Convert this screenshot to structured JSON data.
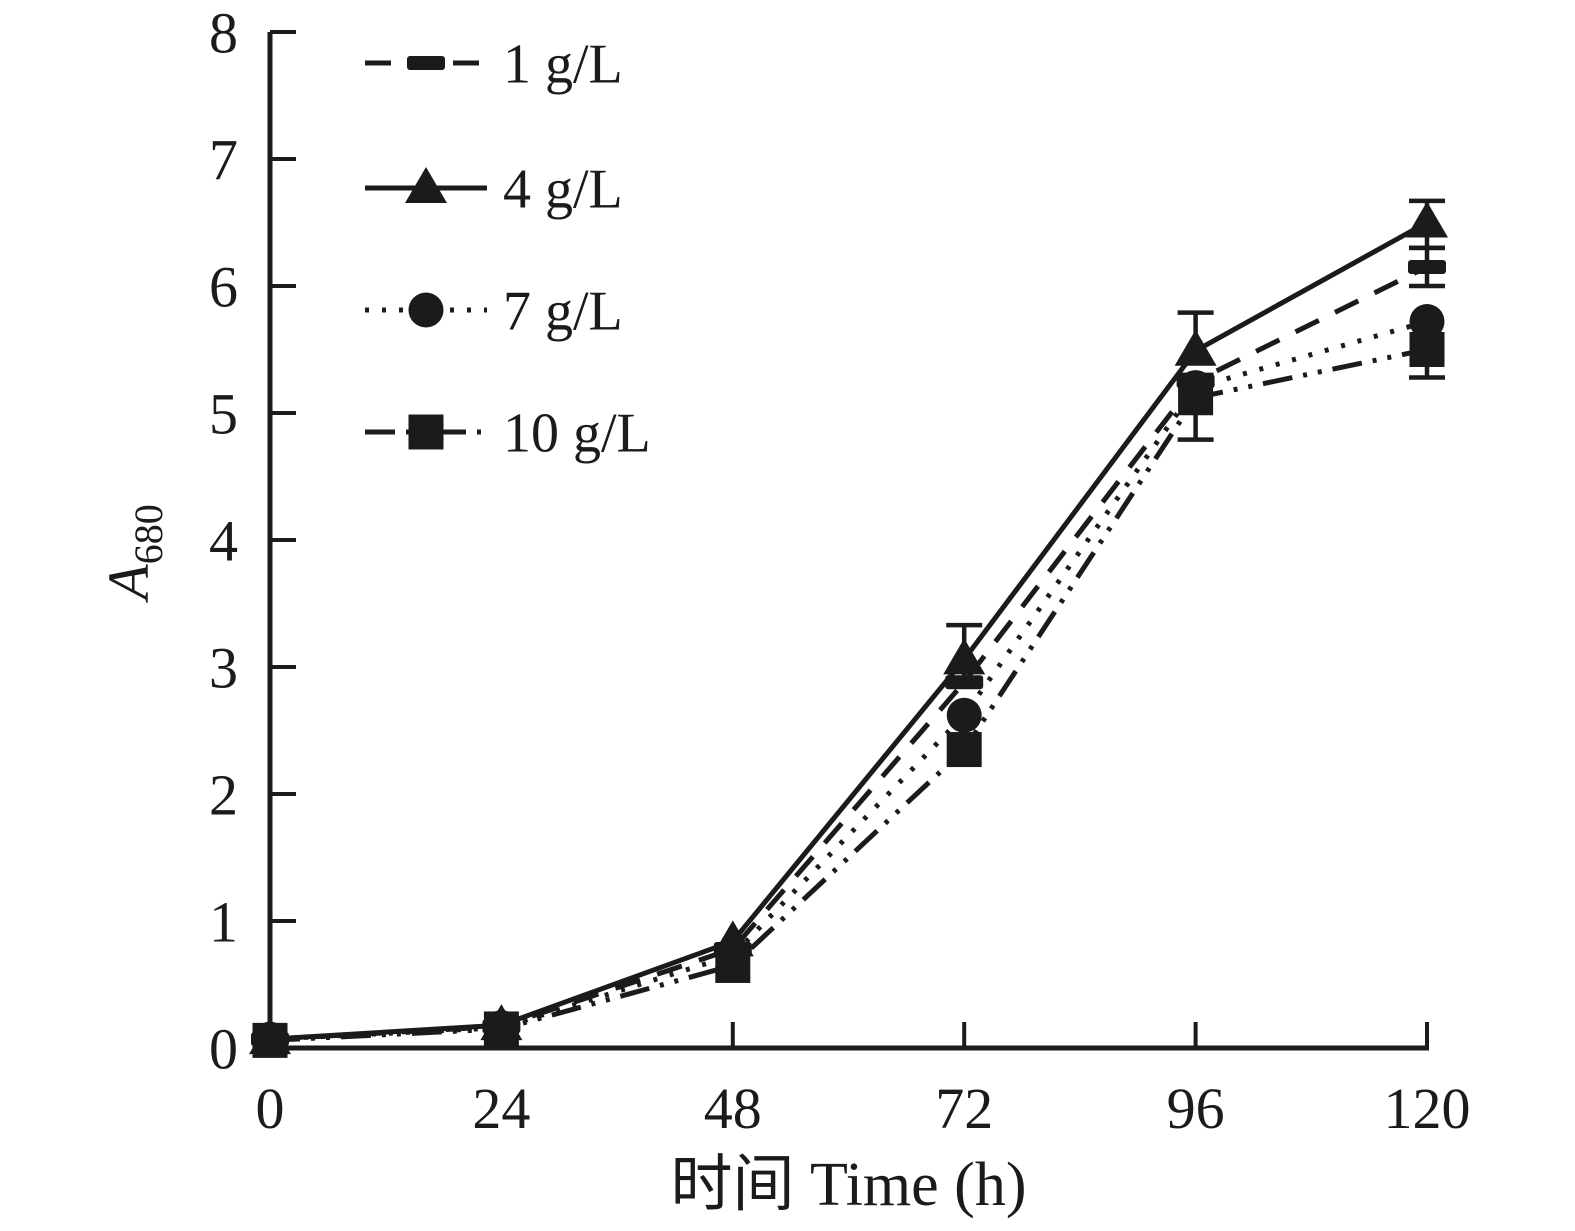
{
  "figure": {
    "background": "#ffffff",
    "ink_color": "#1b1b1b"
  },
  "chart_data": {
    "type": "line",
    "title": "",
    "xlabel": "时间 Time (h)",
    "ylabel": "A680",
    "ylabel_base": "A",
    "ylabel_subscript": "680",
    "x": [
      0,
      24,
      48,
      72,
      96,
      120
    ],
    "xlim": [
      0,
      120
    ],
    "ylim": [
      0,
      8
    ],
    "x_ticks": [
      "0",
      "24",
      "48",
      "72",
      "96",
      "120"
    ],
    "y_ticks": [
      "0",
      "1",
      "2",
      "3",
      "4",
      "5",
      "6",
      "7",
      "8"
    ],
    "grid": false,
    "legend_position": "upper-left-inside",
    "series": [
      {
        "name": "1 g/L",
        "marker": "dash",
        "line_style": "dashed",
        "values": [
          0.07,
          0.17,
          0.78,
          2.88,
          5.25,
          6.15
        ],
        "err_plus": [
          0,
          0,
          0,
          0,
          0,
          0.15
        ],
        "err_minus": [
          0,
          0,
          0,
          0,
          0,
          0.15
        ]
      },
      {
        "name": "4 g/L",
        "marker": "triangle",
        "line_style": "solid",
        "values": [
          0.07,
          0.18,
          0.84,
          3.06,
          5.49,
          6.5
        ],
        "err_plus": [
          0,
          0,
          0,
          0.27,
          0.3,
          0.17
        ],
        "err_minus": [
          0,
          0,
          0,
          0.2,
          0,
          0.2
        ]
      },
      {
        "name": "7 g/L",
        "marker": "circle",
        "line_style": "dotted",
        "values": [
          0.07,
          0.16,
          0.73,
          2.62,
          5.2,
          5.72
        ],
        "err_plus": [
          0,
          0,
          0,
          0,
          0,
          0
        ],
        "err_minus": [
          0,
          0,
          0,
          0,
          0,
          0
        ]
      },
      {
        "name": "10 g/L",
        "marker": "square",
        "line_style": "dash-dot-dot",
        "values": [
          0.06,
          0.15,
          0.65,
          2.35,
          5.12,
          5.5
        ],
        "err_plus": [
          0,
          0,
          0,
          0,
          0.18,
          0
        ],
        "err_minus": [
          0,
          0,
          0,
          0,
          0.33,
          0.22
        ]
      }
    ]
  }
}
